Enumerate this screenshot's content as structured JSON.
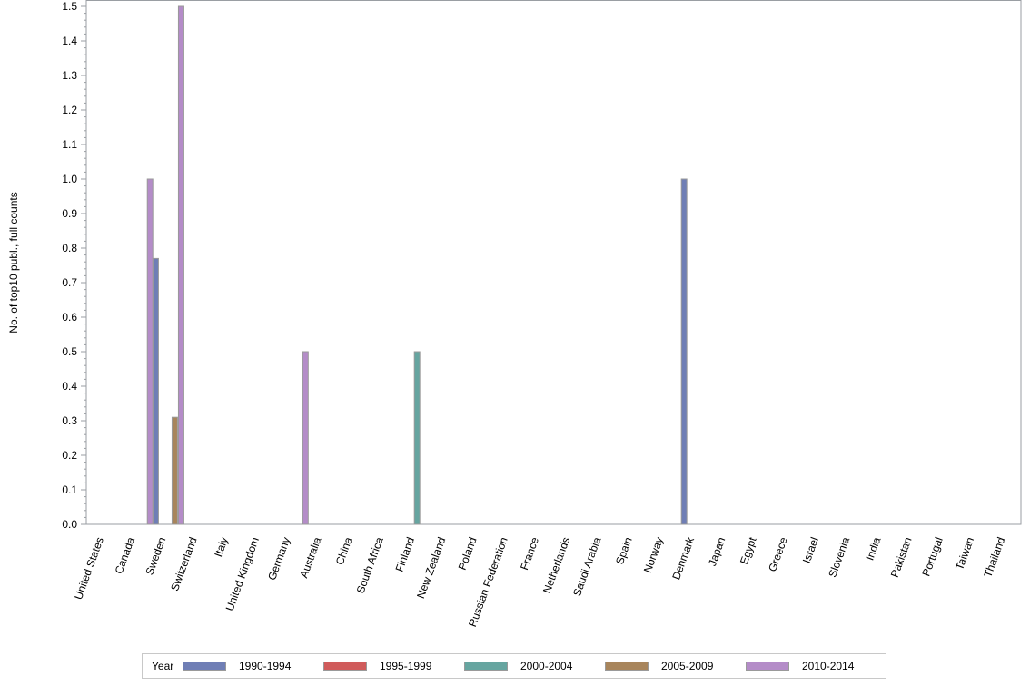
{
  "chart_data": {
    "type": "bar",
    "title": "",
    "xlabel": "",
    "ylabel": "No. of top10 publ., full counts",
    "ylim": [
      0,
      1.5
    ],
    "yticks": [
      "0.0",
      "0.1",
      "0.2",
      "0.3",
      "0.4",
      "0.5",
      "0.6",
      "0.7",
      "0.8",
      "0.9",
      "1.0",
      "1.1",
      "1.2",
      "1.3",
      "1.4",
      "1.5"
    ],
    "grid": false,
    "legend_position": "bottom",
    "legend_title": "Year",
    "categories": [
      "United States",
      "Canada",
      "Sweden",
      "Switzerland",
      "Italy",
      "United Kingdom",
      "Germany",
      "Australia",
      "China",
      "South Africa",
      "Finland",
      "New Zealand",
      "Poland",
      "Russian Federation",
      "France",
      "Netherlands",
      "Saudi Arabia",
      "Spain",
      "Norway",
      "Denmark",
      "Japan",
      "Egypt",
      "Greece",
      "Israel",
      "Slovenia",
      "India",
      "Pakistan",
      "Portugal",
      "Taiwan",
      "Thailand"
    ],
    "series": [
      {
        "name": "1990-1994",
        "color": "#6f7eb5",
        "values": [
          0,
          0,
          0.77,
          0,
          0,
          0,
          0,
          0,
          0,
          0,
          0,
          0,
          0,
          0,
          0,
          0,
          0,
          0,
          0,
          1.0,
          0,
          0,
          0,
          0,
          0,
          0,
          0,
          0,
          0,
          0
        ]
      },
      {
        "name": "1995-1999",
        "color": "#d05b5b",
        "values": [
          0,
          0,
          0,
          0,
          0,
          0,
          0,
          0,
          0,
          0,
          0,
          0,
          0,
          0,
          0,
          0,
          0,
          0,
          0,
          0,
          0,
          0,
          0,
          0,
          0,
          0,
          0,
          0,
          0,
          0
        ]
      },
      {
        "name": "2000-2004",
        "color": "#66a5a0",
        "values": [
          0,
          0,
          0,
          0,
          0,
          0,
          0,
          0,
          0,
          0,
          0.5,
          0,
          0,
          0,
          0,
          0,
          0,
          0,
          0,
          0,
          0,
          0,
          0,
          0,
          0,
          0,
          0,
          0,
          0,
          0
        ]
      },
      {
        "name": "2005-2009",
        "color": "#a8855c",
        "values": [
          0,
          0,
          0.31,
          0,
          0,
          0,
          0,
          0,
          0,
          0,
          0,
          0,
          0,
          0,
          0,
          0,
          0,
          0,
          0,
          0,
          0,
          0,
          0,
          0,
          0,
          0,
          0,
          0,
          0,
          0
        ]
      },
      {
        "name": "2010-2014",
        "color": "#b48cc8",
        "values": [
          0,
          1.0,
          1.5,
          0,
          0,
          0,
          0.5,
          0,
          0,
          0,
          0,
          0,
          0,
          0,
          0,
          0,
          0,
          0,
          0,
          0,
          0,
          0,
          0,
          0,
          0,
          0,
          0,
          0,
          0,
          0
        ]
      }
    ]
  }
}
